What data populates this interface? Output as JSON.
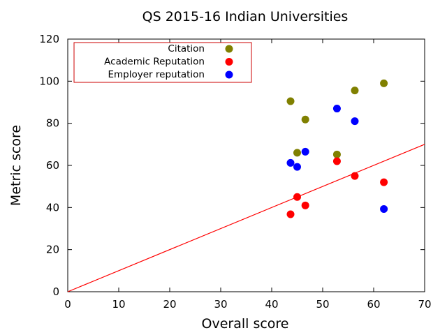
{
  "chart_data": {
    "type": "scatter",
    "title": "QS 2015-16 Indian Universities",
    "xlabel": "Overall score",
    "ylabel": "Metric score",
    "xlim": [
      0,
      70
    ],
    "ylim": [
      0,
      120
    ],
    "xticks": [
      0,
      10,
      20,
      30,
      40,
      50,
      60,
      70
    ],
    "yticks": [
      0,
      20,
      40,
      60,
      80,
      100,
      120
    ],
    "grid": false,
    "legend_position": "top-left",
    "series": [
      {
        "name": "Citation",
        "color": "#808000",
        "points": [
          [
            43.7,
            90.5
          ],
          [
            45.0,
            66.0
          ],
          [
            46.6,
            81.8
          ],
          [
            52.8,
            65.2
          ],
          [
            56.3,
            95.6
          ],
          [
            62.0,
            99.0
          ]
        ]
      },
      {
        "name": "Academic Reputation",
        "color": "#ff0000",
        "points": [
          [
            43.7,
            36.8
          ],
          [
            45.0,
            45.0
          ],
          [
            46.6,
            41.0
          ],
          [
            52.8,
            62.0
          ],
          [
            56.3,
            55.0
          ],
          [
            62.0,
            52.0
          ]
        ]
      },
      {
        "name": "Employer reputation",
        "color": "#0000ff",
        "points": [
          [
            43.7,
            61.2
          ],
          [
            45.0,
            59.3
          ],
          [
            46.6,
            66.5
          ],
          [
            52.8,
            87.0
          ],
          [
            56.3,
            81.0
          ],
          [
            62.0,
            39.3
          ]
        ]
      }
    ],
    "reference_line": {
      "color": "#ff0000",
      "from": [
        0,
        0
      ],
      "to": [
        70,
        70
      ]
    }
  }
}
